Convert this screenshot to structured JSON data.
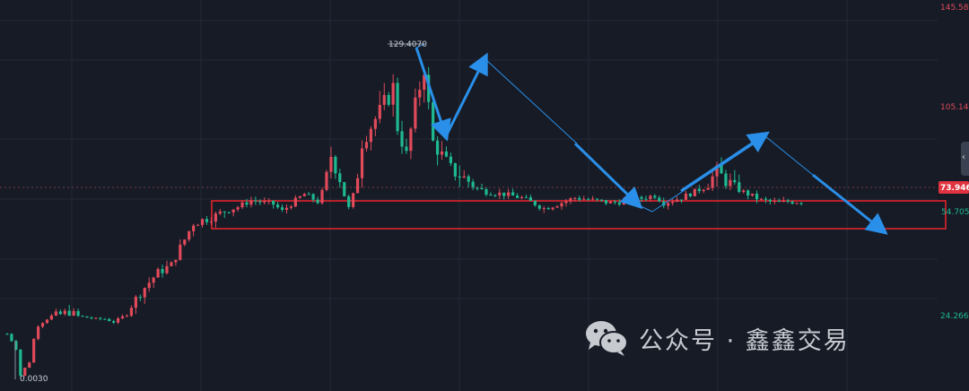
{
  "chart_data": {
    "type": "candlestick",
    "y_scale": "log",
    "ylim": [
      0.003,
      145.5825
    ],
    "y_tick_labels": [
      "145.5825",
      "105.1438",
      "24.2663"
    ],
    "price_labels": {
      "high_marker": "129.4070",
      "low_marker": "0.0030",
      "current_price": "73.9460",
      "support_level": "54.7050"
    },
    "colors": {
      "up": "#e04a5a",
      "down": "#1fb98f",
      "arrow": "#2a8fe8",
      "zone": "#e0252c",
      "current_price_bg": "#e0323f"
    },
    "annotations": {
      "support_zone": "red rectangle spanning the 54.7050 level",
      "arrows": "blue trend arrows projecting a decline"
    },
    "grid": true
  },
  "watermark": {
    "text": "公众号 · 鑫鑫交易",
    "icon": "wechat-icon"
  },
  "side_tab": {
    "icon": "chevron-left-icon",
    "glyph": "‹"
  }
}
